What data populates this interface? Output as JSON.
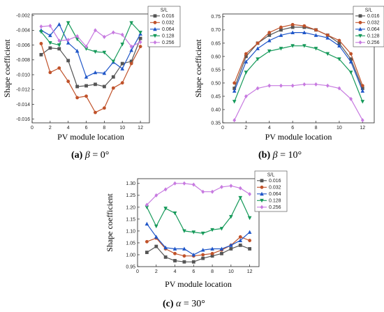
{
  "colors": {
    "S016": "#555555",
    "S032": "#c0522a",
    "S064": "#1f56c8",
    "S128": "#169a5a",
    "S256": "#c77ae0"
  },
  "chart_data": [
    {
      "id": "a",
      "type": "line",
      "caption": {
        "letter": "(a)",
        "symbol": "β",
        "rest": " = 0°"
      },
      "xlabel": "PV module location",
      "ylabel": "Shape coefficient",
      "xlim": [
        0,
        13
      ],
      "ylim": [
        -0.0165,
        -0.0018
      ],
      "xticks": [
        "0",
        "2",
        "4",
        "6",
        "8",
        "10",
        "12"
      ],
      "yticks": [
        "-0.002",
        "-0.004",
        "-0.006",
        "-0.008",
        "-0.010",
        "-0.012",
        "-0.014",
        "-0.016"
      ],
      "legend_title": "S/L",
      "x": [
        1,
        2,
        3,
        4,
        5,
        6,
        7,
        8,
        9,
        10,
        11,
        12
      ],
      "series": [
        {
          "name": "0.016",
          "color_key": "S016",
          "marker": "square",
          "values": [
            -0.0073,
            -0.0064,
            -0.0065,
            -0.0081,
            -0.0116,
            -0.0115,
            -0.0113,
            -0.0116,
            -0.0103,
            -0.0085,
            -0.0082,
            -0.0051
          ]
        },
        {
          "name": "0.032",
          "color_key": "S032",
          "marker": "circle",
          "values": [
            -0.0058,
            -0.0097,
            -0.0091,
            -0.0109,
            -0.0131,
            -0.0129,
            -0.0151,
            -0.0145,
            -0.0118,
            -0.0111,
            -0.0085,
            -0.0062
          ]
        },
        {
          "name": "0.064",
          "color_key": "S064",
          "marker": "triangle-up",
          "values": [
            -0.004,
            -0.0047,
            -0.0032,
            -0.0057,
            -0.0068,
            -0.0103,
            -0.0097,
            -0.0098,
            -0.0083,
            -0.0092,
            -0.0067,
            -0.0045
          ]
        },
        {
          "name": "0.128",
          "color_key": "S128",
          "marker": "triangle-down",
          "values": [
            -0.0042,
            -0.0057,
            -0.006,
            -0.003,
            -0.0052,
            -0.0065,
            -0.0069,
            -0.007,
            -0.0082,
            -0.0059,
            -0.003,
            -0.0043
          ]
        },
        {
          "name": "0.256",
          "color_key": "S256",
          "marker": "diamond",
          "values": [
            -0.0035,
            -0.0034,
            -0.0054,
            -0.0053,
            -0.0048,
            -0.0062,
            -0.004,
            -0.0049,
            -0.0043,
            -0.0046,
            -0.0062,
            -0.0056
          ]
        }
      ]
    },
    {
      "id": "b",
      "type": "line",
      "caption": {
        "letter": "(b)",
        "symbol": "β",
        "rest": " = 10°"
      },
      "xlabel": "PV module location",
      "ylabel": "Shape coefficient",
      "xlim": [
        0,
        13
      ],
      "ylim": [
        0.35,
        0.76
      ],
      "xticks": [
        "0",
        "2",
        "4",
        "6",
        "8",
        "10",
        "12"
      ],
      "yticks": [
        "0.35",
        "0.40",
        "0.45",
        "0.50",
        "0.55",
        "0.60",
        "0.65",
        "0.70",
        "0.75"
      ],
      "legend_title": "S/L",
      "x": [
        1,
        2,
        3,
        4,
        5,
        6,
        7,
        8,
        9,
        10,
        11,
        12
      ],
      "series": [
        {
          "name": "0.016",
          "color_key": "S016",
          "marker": "square",
          "values": [
            0.48,
            0.6,
            0.65,
            0.68,
            0.7,
            0.71,
            0.71,
            0.7,
            0.68,
            0.65,
            0.59,
            0.48
          ]
        },
        {
          "name": "0.032",
          "color_key": "S032",
          "marker": "circle",
          "values": [
            0.5,
            0.61,
            0.65,
            0.69,
            0.71,
            0.72,
            0.715,
            0.7,
            0.68,
            0.66,
            0.61,
            0.49
          ]
        },
        {
          "name": "0.064",
          "color_key": "S064",
          "marker": "triangle-up",
          "values": [
            0.47,
            0.58,
            0.63,
            0.66,
            0.68,
            0.69,
            0.69,
            0.68,
            0.67,
            0.64,
            0.58,
            0.47
          ]
        },
        {
          "name": "0.128",
          "color_key": "S128",
          "marker": "triangle-down",
          "values": [
            0.43,
            0.54,
            0.59,
            0.62,
            0.63,
            0.64,
            0.64,
            0.63,
            0.61,
            0.59,
            0.54,
            0.43
          ]
        },
        {
          "name": "0.256",
          "color_key": "S256",
          "marker": "diamond",
          "values": [
            0.36,
            0.45,
            0.48,
            0.49,
            0.49,
            0.49,
            0.495,
            0.495,
            0.49,
            0.48,
            0.44,
            0.36
          ]
        }
      ]
    },
    {
      "id": "c",
      "type": "line",
      "caption": {
        "letter": "(c)",
        "symbol": "α",
        "rest": " = 30°"
      },
      "xlabel": "PV module location",
      "ylabel": "Shape coefficient",
      "xlim": [
        0,
        13
      ],
      "ylim": [
        0.95,
        1.32
      ],
      "xticks": [
        "0",
        "2",
        "4",
        "6",
        "8",
        "10",
        "12"
      ],
      "yticks": [
        "0.95",
        "1.00",
        "1.05",
        "1.10",
        "1.15",
        "1.20",
        "1.25",
        "1.30"
      ],
      "legend_title": "S/L",
      "x": [
        1,
        2,
        3,
        4,
        5,
        6,
        7,
        8,
        9,
        10,
        11,
        12
      ],
      "series": [
        {
          "name": "0.016",
          "color_key": "S016",
          "marker": "square",
          "values": [
            1.01,
            1.035,
            0.99,
            0.975,
            0.97,
            0.97,
            0.985,
            0.995,
            1.005,
            1.025,
            1.04,
            1.025
          ]
        },
        {
          "name": "0.032",
          "color_key": "S032",
          "marker": "circle",
          "values": [
            1.055,
            1.07,
            1.025,
            1.005,
            0.995,
            0.995,
            1.0,
            1.005,
            1.02,
            1.04,
            1.075,
            1.06
          ]
        },
        {
          "name": "0.064",
          "color_key": "S064",
          "marker": "triangle-up",
          "values": [
            1.13,
            1.075,
            1.03,
            1.025,
            1.025,
            1.0,
            1.02,
            1.025,
            1.025,
            1.04,
            1.06,
            1.095
          ]
        },
        {
          "name": "0.128",
          "color_key": "S128",
          "marker": "triangle-down",
          "values": [
            1.2,
            1.12,
            1.195,
            1.175,
            1.1,
            1.095,
            1.09,
            1.105,
            1.11,
            1.16,
            1.24,
            1.155
          ]
        },
        {
          "name": "0.256",
          "color_key": "S256",
          "marker": "diamond",
          "values": [
            1.21,
            1.25,
            1.275,
            1.3,
            1.3,
            1.295,
            1.265,
            1.265,
            1.285,
            1.29,
            1.28,
            1.255
          ]
        }
      ]
    }
  ]
}
